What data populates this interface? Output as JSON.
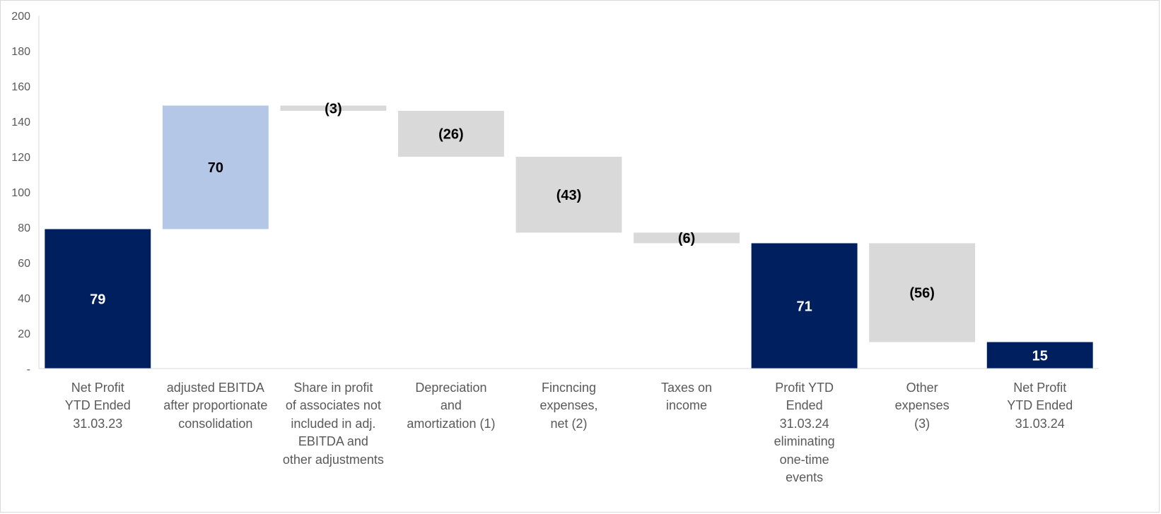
{
  "chart_data": {
    "type": "bar",
    "subtype": "waterfall",
    "title": "",
    "xlabel": "",
    "ylabel": "",
    "ylim": [
      0,
      200
    ],
    "yticks": [
      "-",
      "20",
      "40",
      "60",
      "80",
      "100",
      "120",
      "140",
      "160",
      "180",
      "200"
    ],
    "grid": false,
    "legend": "none",
    "colors": {
      "total": "#001F5F",
      "increase": "#B4C7E7",
      "decrease": "#D9D9D9",
      "label_dark": "#000000",
      "label_light": "#FFFFFF"
    },
    "bars": [
      {
        "kind": "total",
        "base": 0,
        "top": 79,
        "label": "79",
        "category": [
          "Net Profit",
          "YTD Ended",
          "31.03.23"
        ]
      },
      {
        "kind": "increase",
        "base": 79,
        "top": 149,
        "label": "70",
        "category": [
          "adjusted EBITDA",
          "after proportionate",
          "consolidation"
        ]
      },
      {
        "kind": "decrease",
        "base": 146,
        "top": 149,
        "label": "(3)",
        "category": [
          "Share in profit",
          "of associates not",
          "included in adj.",
          "EBITDA and",
          "other adjustments"
        ]
      },
      {
        "kind": "decrease",
        "base": 120,
        "top": 146,
        "label": "(26)",
        "category": [
          "Depreciation",
          "and",
          "amortization (1)"
        ]
      },
      {
        "kind": "decrease",
        "base": 77,
        "top": 120,
        "label": "(43)",
        "category": [
          "Fincncing",
          "expenses,",
          "net (2)"
        ]
      },
      {
        "kind": "decrease",
        "base": 71,
        "top": 77,
        "label": "(6)",
        "category": [
          "Taxes on",
          "income"
        ]
      },
      {
        "kind": "total",
        "base": 0,
        "top": 71,
        "label": "71",
        "category": [
          "Profit YTD",
          "Ended",
          "31.03.24",
          "eliminating",
          "one-time",
          "events"
        ]
      },
      {
        "kind": "decrease",
        "base": 15,
        "top": 71,
        "label": "(56)",
        "category": [
          "Other",
          "expenses",
          "(3)"
        ]
      },
      {
        "kind": "total",
        "base": 0,
        "top": 15,
        "label": "15",
        "category": [
          "Net Profit",
          "YTD Ended",
          "31.03.24"
        ]
      }
    ]
  }
}
